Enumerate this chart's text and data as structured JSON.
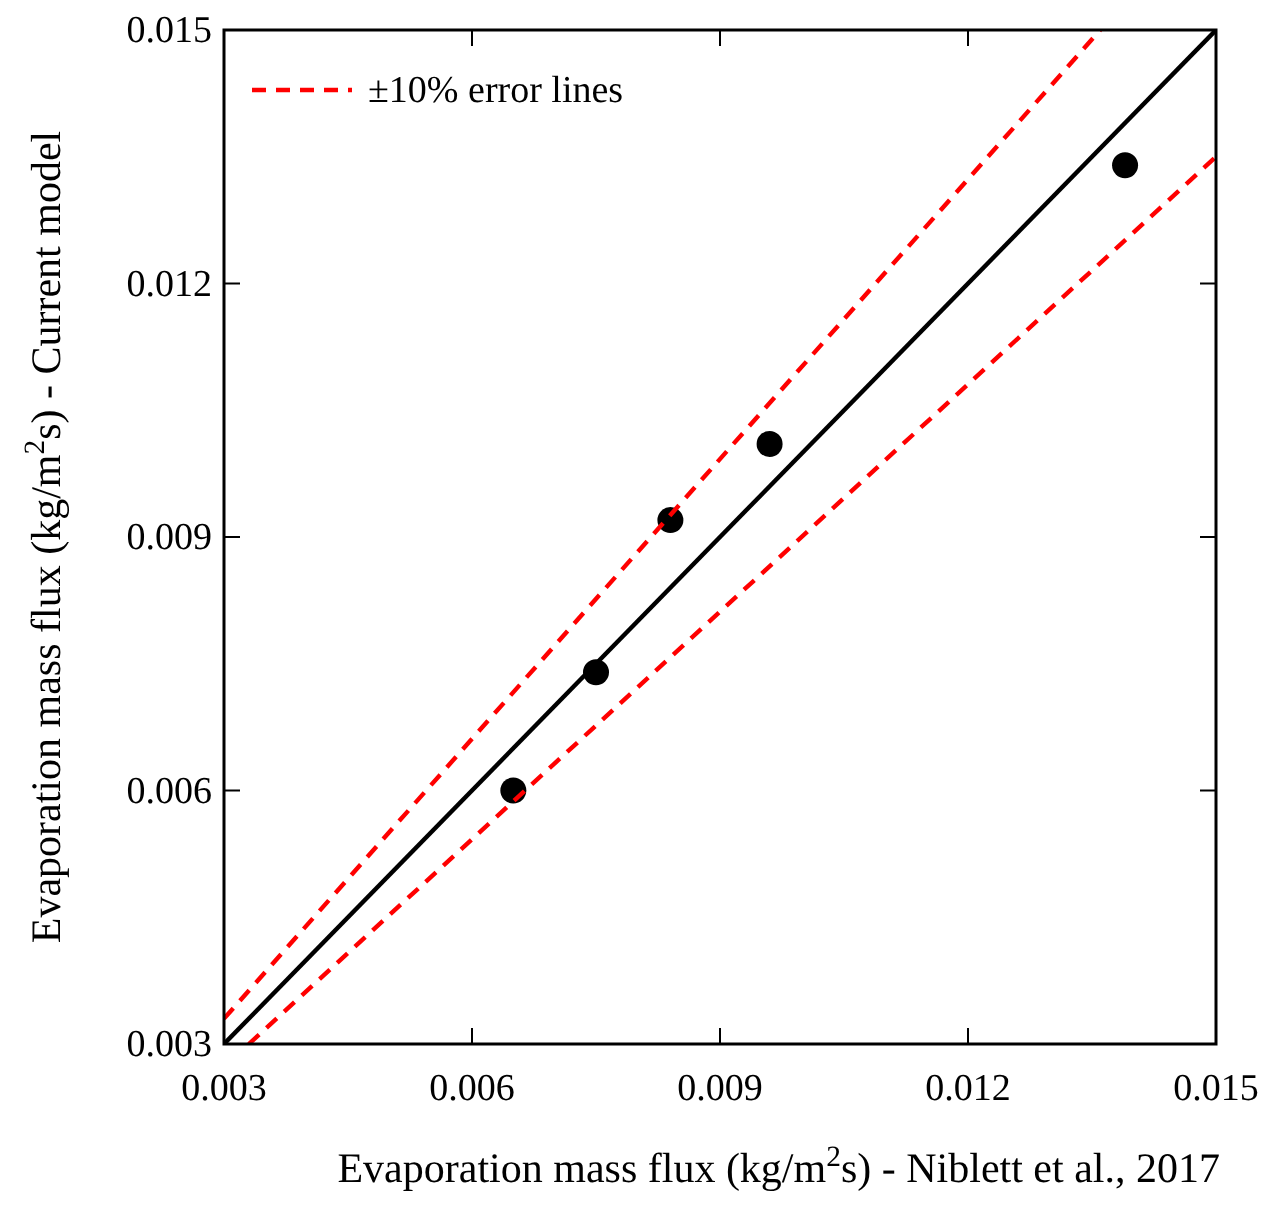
{
  "chart_data": {
    "type": "scatter",
    "xlabel": "Evaporation mass flux (kg/m$^{2}$s) - Niblett et al., 2017",
    "ylabel": "Evaporation mass flux (kg/m$^{2}$s) - Current model",
    "xlim": [
      0.003,
      0.015
    ],
    "ylim": [
      0.003,
      0.015
    ],
    "xticks": [
      0.003,
      0.006,
      0.009,
      0.012,
      0.015
    ],
    "yticks": [
      0.003,
      0.006,
      0.009,
      0.012,
      0.015
    ],
    "grid": false,
    "legend": "top left",
    "series": [
      {
        "color": "#000000",
        "marker": "circle",
        "x": [
          0.0065,
          0.0075,
          0.0084,
          0.0096,
          0.0139
        ],
        "values": [
          0.006,
          0.0074,
          0.0092,
          0.0101,
          0.0134
        ]
      },
      {
        "type": "line",
        "color": "#000000",
        "line_style": "solid",
        "x": [
          0.003,
          0.015
        ],
        "values": [
          0.003,
          0.015
        ]
      },
      {
        "type": "line",
        "name": "±10% error lines",
        "color": "#ff0000",
        "line_style": "dashed",
        "x": [
          0.003,
          0.0136
        ],
        "values": [
          0.0033,
          0.015
        ]
      },
      {
        "type": "line",
        "color": "#ff0000",
        "line_style": "dashed",
        "x": [
          0.0033,
          0.015
        ],
        "values": [
          0.003,
          0.0135
        ]
      }
    ]
  }
}
